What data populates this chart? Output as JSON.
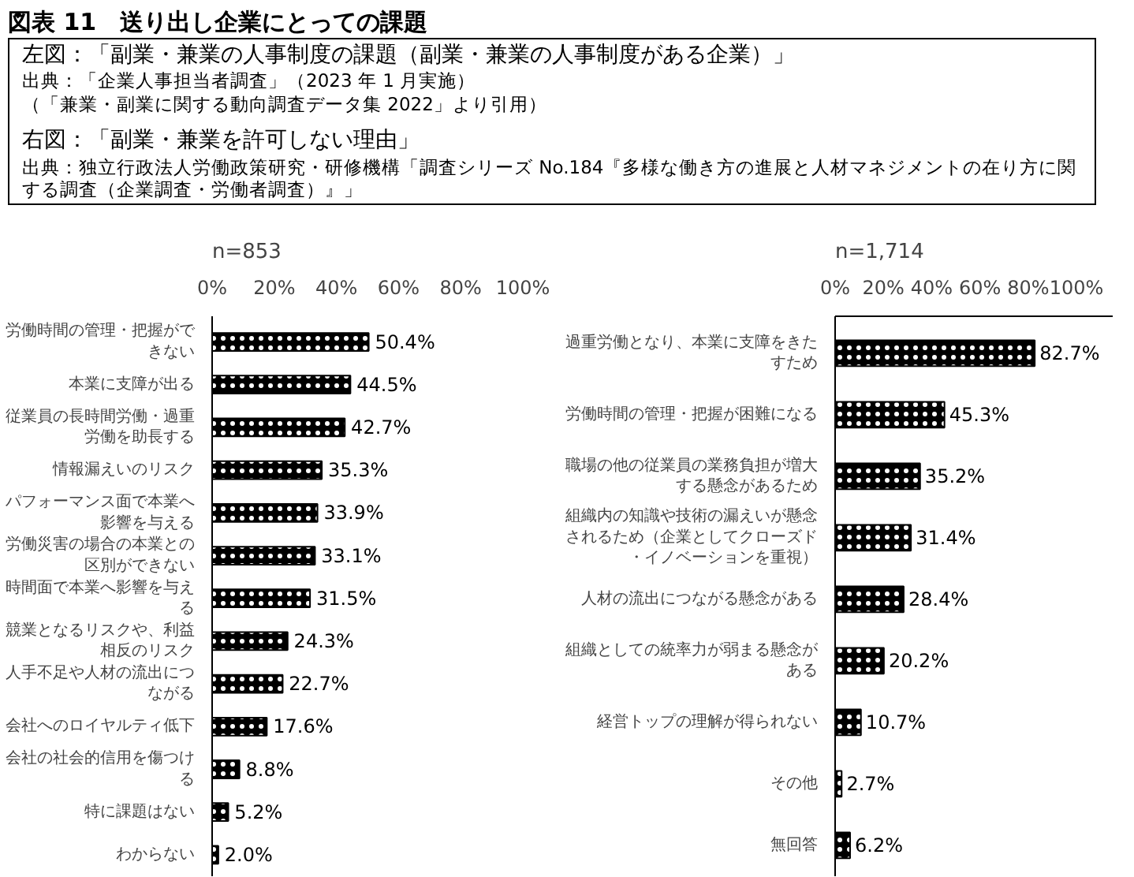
{
  "chart_data": [
    {
      "type": "bar",
      "orientation": "horizontal",
      "title": "図表 11　送り出し企業にとっての課題",
      "subtitle": "左図：「副業・兼業の人事制度の課題（副業・兼業の人事制度がある企業）」",
      "annotations": [
        "出典：「企業人事担当者調査」（2023 年 1 月実施）",
        "（「兼業・副業に関する動向調査データ集 2022」より引用）",
        "右図：「副業・兼業を許可しない理由」",
        "出典：独立行政法人労働政策研究・研修機構「調査シリーズ No.184『多様な働き方の進展と人材マネジメントの在り方に関する調査（企業調査・労働者調査）』」",
        "n=853"
      ],
      "categories": [
        "労働時間の管理・把握ができない",
        "本業に支障が出る",
        "従業員の長時間労働・過重労働を助長する",
        "情報漏えいのリスク",
        "パフォーマンス面で本業へ影響を与える",
        "労働災害の場合の本業との区別ができない",
        "時間面で本業へ影響を与える",
        "競業となるリスクや、利益相反のリスク",
        "人手不足や人材の流出につながる",
        "会社へのロイヤルティ低下",
        "会社の社会的信用を傷つける",
        "特に課題はない",
        "わからない"
      ],
      "values": [
        50.4,
        44.5,
        42.7,
        35.3,
        33.9,
        33.1,
        31.5,
        24.3,
        22.7,
        17.6,
        8.8,
        5.2,
        2.0
      ],
      "value_labels": [
        "50.4%",
        "44.5%",
        "42.7%",
        "35.3%",
        "33.9%",
        "33.1%",
        "31.5%",
        "24.3%",
        "22.7%",
        "17.6%",
        "8.8%",
        "5.2%",
        "2.0%"
      ],
      "color": "#000000",
      "xlim": [
        0,
        100
      ],
      "xticks": [
        {
          "value": 0,
          "label": "0%"
        },
        {
          "value": 20,
          "label": "20%"
        },
        {
          "value": 40,
          "label": "40%"
        },
        {
          "value": 60,
          "label": "60%"
        },
        {
          "value": 80,
          "label": "80%"
        },
        {
          "value": 100,
          "label": "100%"
        }
      ],
      "grid": false
    },
    {
      "type": "bar",
      "orientation": "horizontal",
      "annotations": [
        "n=1,714"
      ],
      "categories": [
        "過重労働となり、本業に支障をきたすため",
        "労働時間の管理・把握が困難になる",
        "職場の他の従業員の業務負担が増大する懸念があるため",
        "組織内の知識や技術の漏えいが懸念されるため（企業としてクローズド・イノベーションを重視）",
        "人材の流出につながる懸念がある",
        "組織としての統率力が弱まる懸念がある",
        "経営トップの理解が得られない",
        "その他",
        "無回答"
      ],
      "values": [
        82.7,
        45.3,
        35.2,
        31.4,
        28.4,
        20.2,
        10.7,
        2.7,
        6.2
      ],
      "value_labels": [
        "82.7%",
        "45.3%",
        "35.2%",
        "31.4%",
        "28.4%",
        "20.2%",
        "10.7%",
        "2.7%",
        "6.2%"
      ],
      "color": "#000000",
      "xlim": [
        0,
        115
      ],
      "xticks": [
        {
          "value": 0,
          "label": "0%"
        },
        {
          "value": 20,
          "label": "20%"
        },
        {
          "value": 40,
          "label": "40%"
        },
        {
          "value": 60,
          "label": "60%"
        },
        {
          "value": 80,
          "label": "80%"
        },
        {
          "value": 100,
          "label": "100%"
        }
      ],
      "grid": false
    }
  ]
}
